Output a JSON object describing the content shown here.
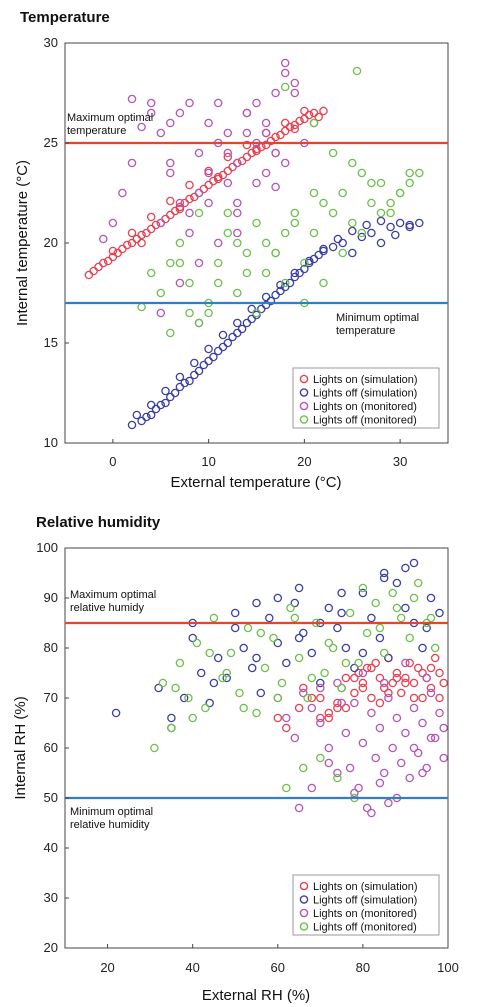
{
  "chart_data": [
    {
      "type": "scatter",
      "title": "Temperature",
      "xlabel": "External temperature (°C)",
      "ylabel": "Internal temperature (°C)",
      "xlim": [
        -5,
        35
      ],
      "ylim": [
        10,
        30
      ],
      "xticks": [
        "0",
        "10",
        "20",
        "30"
      ],
      "xtick_values": [
        0,
        10,
        20,
        30
      ],
      "yticks": [
        "10",
        "15",
        "20",
        "25",
        "30"
      ],
      "ytick_values": [
        10,
        15,
        20,
        25,
        30
      ],
      "reference_lines": [
        {
          "value": 25,
          "color": "#e0472d",
          "label": "Maximum optimal temperature",
          "label_lines": [
            "Maximum optimal",
            "temperature"
          ],
          "label_position": "above-left"
        },
        {
          "value": 17,
          "color": "#2e7fc3",
          "label": "Minimum optimal temperature",
          "label_lines": [
            "Minimum optimal",
            "temperature"
          ],
          "label_position": "below-right"
        }
      ],
      "legend": {
        "position": "bottom-right"
      },
      "series": [
        {
          "name": "Lights on (simulation)",
          "color": "#e8404f",
          "x": [
            -2.5,
            -2,
            -1.5,
            -1,
            -0.5,
            0,
            0.5,
            1,
            1.5,
            2,
            2.5,
            3,
            3.5,
            4,
            4.5,
            5,
            5.5,
            6,
            6.5,
            7,
            7.5,
            8,
            8.5,
            9,
            9.5,
            10,
            10.5,
            11,
            11.5,
            12,
            12.5,
            13,
            13.5,
            14,
            14.5,
            15,
            15.5,
            16,
            16.5,
            17,
            17.5,
            18,
            18.5,
            19,
            19.5,
            20,
            20.5,
            21,
            21.5,
            22,
            0,
            2,
            4,
            6,
            8,
            10,
            12,
            14,
            16,
            18,
            20,
            3,
            7,
            11,
            15,
            19
          ],
          "y": [
            18.4,
            18.6,
            18.8,
            19.0,
            19.1,
            19.3,
            19.5,
            19.7,
            19.9,
            20.0,
            20.2,
            20.4,
            20.5,
            20.7,
            20.9,
            21.0,
            21.2,
            21.4,
            21.6,
            21.8,
            22.0,
            22.2,
            22.3,
            22.5,
            22.7,
            22.9,
            23.1,
            23.3,
            23.4,
            23.6,
            23.8,
            24.0,
            24.1,
            24.3,
            24.5,
            24.6,
            24.8,
            24.9,
            25.1,
            25.3,
            25.4,
            25.6,
            25.8,
            25.9,
            26.1,
            26.2,
            26.4,
            26.5,
            26.3,
            26.6,
            19.6,
            20.5,
            21.3,
            22.1,
            22.9,
            23.6,
            24.3,
            24.9,
            25.5,
            26.0,
            26.6,
            20.0,
            21.7,
            23.2,
            24.7,
            25.7
          ]
        },
        {
          "name": "Lights off (simulation)",
          "color": "#3b3fa3",
          "x": [
            2,
            3,
            3.5,
            4,
            4.5,
            5,
            5.5,
            6,
            6.5,
            7,
            7.5,
            8,
            8.5,
            9,
            9.5,
            10,
            10.5,
            11,
            11.5,
            12,
            12.5,
            13,
            13.5,
            14,
            14.5,
            15,
            15.5,
            16,
            16.5,
            17,
            17.5,
            18,
            18.5,
            19,
            19.5,
            20,
            20.5,
            21,
            21.5,
            22,
            23,
            24,
            25,
            26,
            27,
            28,
            29,
            30,
            31,
            32,
            2.5,
            4,
            5.5,
            7,
            8.5,
            10,
            11.5,
            13,
            14.5,
            16,
            17.5,
            19,
            20.5,
            22,
            23.5,
            25,
            26.5,
            28,
            29.5,
            31
          ],
          "y": [
            10.9,
            11.1,
            11.3,
            11.4,
            11.7,
            11.9,
            12.0,
            12.3,
            12.5,
            12.8,
            13.0,
            13.1,
            13.4,
            13.6,
            13.9,
            14.1,
            14.3,
            14.6,
            14.8,
            15.0,
            15.3,
            15.5,
            15.7,
            16.0,
            16.2,
            16.4,
            16.7,
            16.9,
            17.1,
            17.4,
            17.6,
            17.8,
            18.0,
            18.3,
            18.5,
            18.7,
            19.0,
            19.2,
            19.4,
            19.6,
            19.8,
            20.0,
            19.5,
            20.3,
            20.5,
            20.0,
            20.8,
            21.0,
            20.8,
            21.0,
            11.4,
            11.9,
            12.6,
            13.3,
            14.0,
            14.7,
            15.4,
            16.0,
            16.7,
            17.3,
            17.9,
            18.5,
            19.1,
            19.7,
            20.2,
            20.6,
            20.9,
            21.1,
            20.4,
            20.9
          ]
        },
        {
          "name": "Lights on (monitored)",
          "color": "#b653b6",
          "x": [
            -1,
            0,
            1,
            2,
            3,
            4,
            5,
            6,
            7,
            8,
            9,
            10,
            11,
            12,
            13,
            14,
            15,
            16,
            17,
            18,
            19,
            20,
            21,
            5,
            6,
            7,
            8,
            9,
            10,
            11,
            12,
            13,
            14,
            15,
            16,
            17,
            18,
            4,
            6,
            8,
            10,
            12,
            14,
            16,
            18,
            7,
            9,
            11,
            13,
            15,
            17,
            19,
            2,
            5,
            9,
            13,
            17
          ],
          "y": [
            20.2,
            21.0,
            22.5,
            24.0,
            25.8,
            26.5,
            25.5,
            23.5,
            22.0,
            21.5,
            24.5,
            26.0,
            25.0,
            23.0,
            24.0,
            25.5,
            27.0,
            26.0,
            24.5,
            28.5,
            27.5,
            25.0,
            26.0,
            21.0,
            24.0,
            26.5,
            27.0,
            22.5,
            23.5,
            27.0,
            25.5,
            22.0,
            26.5,
            25.0,
            23.5,
            27.5,
            29.0,
            27.0,
            26.0,
            20.5,
            22.0,
            24.5,
            26.5,
            25.5,
            24.0,
            18.0,
            19.0,
            20.0,
            21.5,
            23.0,
            24.5,
            28.0,
            27.2,
            16.5,
            16.0,
            20.5,
            22.8
          ]
        },
        {
          "name": "Lights off (monitored)",
          "color": "#6cc04a",
          "x": [
            4,
            5,
            6,
            7,
            8,
            9,
            10,
            11,
            12,
            13,
            14,
            15,
            16,
            17,
            18,
            19,
            20,
            21,
            22,
            23,
            24,
            25,
            26,
            27,
            28,
            29,
            30,
            31,
            32,
            6,
            8,
            10,
            12,
            14,
            16,
            18,
            20,
            22,
            24,
            26,
            28,
            30,
            7,
            9,
            11,
            13,
            15,
            17,
            19,
            21,
            23,
            25,
            27,
            29,
            31,
            3,
            25.5,
            21,
            18
          ],
          "y": [
            18.5,
            17.5,
            19.0,
            20.0,
            18.0,
            21.5,
            16.5,
            19.0,
            20.5,
            17.5,
            18.5,
            21.0,
            20.0,
            19.5,
            18.0,
            21.5,
            19.0,
            20.5,
            18.0,
            21.5,
            22.5,
            21.0,
            20.5,
            22.0,
            23.0,
            21.5,
            22.5,
            23.0,
            23.5,
            15.5,
            16.5,
            17.0,
            21.5,
            19.5,
            18.5,
            20.5,
            17.0,
            22.0,
            19.5,
            23.5,
            21.5,
            22.5,
            19.0,
            16.0,
            18.0,
            20.0,
            16.5,
            19.5,
            21.0,
            22.5,
            24.5,
            24.0,
            23.0,
            22.0,
            23.5,
            16.8,
            28.6,
            26.0,
            27.8
          ]
        }
      ]
    },
    {
      "type": "scatter",
      "title": "Relative humidity",
      "xlabel": "External RH (%)",
      "ylabel": "Internal RH (%)",
      "xlim": [
        10,
        100
      ],
      "ylim": [
        20,
        100
      ],
      "xticks": [
        "20",
        "40",
        "60",
        "80",
        "100"
      ],
      "xtick_values": [
        20,
        40,
        60,
        80,
        100
      ],
      "yticks": [
        "20",
        "30",
        "40",
        "50",
        "60",
        "70",
        "80",
        "90",
        "100"
      ],
      "ytick_values": [
        20,
        30,
        40,
        50,
        60,
        70,
        80,
        90,
        100
      ],
      "reference_lines": [
        {
          "value": 85,
          "color": "#e0472d",
          "label": "Maximum optimal relative humidy",
          "label_lines": [
            "Maximum optimal",
            "relative humidy"
          ],
          "label_position": "above-left"
        },
        {
          "value": 50,
          "color": "#2e7fc3",
          "label": "Minimum optimal relative humidity",
          "label_lines": [
            "Minimum optimal",
            "relative humidity"
          ],
          "label_position": "below-left"
        }
      ],
      "legend": {
        "position": "bottom-right"
      },
      "series": [
        {
          "name": "Lights on (simulation)",
          "color": "#e8404f",
          "x": [
            60,
            62,
            65,
            68,
            70,
            72,
            74,
            75,
            76,
            78,
            79,
            80,
            81,
            82,
            83,
            84,
            85,
            86,
            87,
            88,
            89,
            90,
            91,
            92,
            93,
            94,
            95,
            96,
            97,
            98,
            99,
            66,
            70,
            74,
            78,
            82,
            86,
            90,
            94,
            98,
            72,
            76,
            80,
            84,
            88,
            92,
            96
          ],
          "y": [
            66,
            64,
            68,
            70,
            66,
            67,
            69,
            72,
            74,
            71,
            75,
            73,
            76,
            70,
            77,
            74,
            72,
            78,
            73,
            75,
            71,
            74,
            77,
            73,
            76,
            70,
            74,
            72,
            78,
            75,
            73,
            72,
            70,
            68,
            74,
            76,
            71,
            73,
            75,
            70,
            66,
            68,
            72,
            69,
            74,
            70,
            76
          ]
        },
        {
          "name": "Lights off (simulation)",
          "color": "#3b3fa3",
          "x": [
            22,
            32,
            35,
            38,
            40,
            42,
            44,
            46,
            48,
            50,
            52,
            54,
            56,
            58,
            60,
            62,
            64,
            66,
            68,
            70,
            72,
            74,
            76,
            78,
            80,
            82,
            84,
            86,
            88,
            90,
            92,
            94,
            96,
            98,
            45,
            50,
            55,
            60,
            65,
            70,
            75,
            80,
            85,
            90,
            95,
            35,
            40,
            55,
            65,
            75,
            85,
            92
          ],
          "y": [
            67,
            72,
            66,
            70,
            82,
            75,
            69,
            78,
            74,
            84,
            80,
            76,
            71,
            86,
            81,
            77,
            89,
            83,
            79,
            73,
            88,
            84,
            80,
            76,
            91,
            86,
            82,
            78,
            93,
            88,
            85,
            80,
            90,
            87,
            73,
            87,
            78,
            90,
            82,
            85,
            91,
            79,
            94,
            96,
            84,
            64,
            85,
            89,
            92,
            87,
            95,
            97
          ]
        },
        {
          "name": "Lights on (monitored)",
          "color": "#b653b6",
          "x": [
            60,
            62,
            64,
            66,
            68,
            70,
            72,
            74,
            76,
            77,
            78,
            79,
            80,
            81,
            82,
            83,
            84,
            85,
            86,
            87,
            88,
            89,
            90,
            91,
            92,
            93,
            94,
            95,
            96,
            97,
            98,
            99,
            70,
            75,
            80,
            85,
            90,
            95,
            72,
            78,
            84,
            88,
            92,
            96,
            99,
            65,
            68,
            74,
            82,
            86,
            94
          ],
          "y": [
            70,
            66,
            62,
            71,
            68,
            65,
            60,
            73,
            63,
            56,
            69,
            52,
            61,
            48,
            67,
            58,
            64,
            55,
            70,
            60,
            66,
            57,
            63,
            54,
            68,
            59,
            65,
            56,
            71,
            62,
            67,
            58,
            72,
            69,
            75,
            73,
            77,
            74,
            57,
            51,
            53,
            50,
            60,
            62,
            64,
            48,
            52,
            55,
            47,
            49,
            55
          ]
        },
        {
          "name": "Lights off (monitored)",
          "color": "#6cc04a",
          "x": [
            31,
            33,
            35,
            37,
            39,
            41,
            43,
            45,
            47,
            49,
            51,
            53,
            55,
            57,
            59,
            61,
            63,
            65,
            67,
            69,
            71,
            73,
            75,
            77,
            79,
            81,
            83,
            85,
            87,
            89,
            91,
            93,
            95,
            97,
            36,
            40,
            44,
            48,
            52,
            56,
            60,
            64,
            68,
            72,
            76,
            80,
            84,
            88,
            92,
            96,
            62,
            66,
            70,
            74,
            78
          ],
          "y": [
            60,
            73,
            64,
            77,
            70,
            81,
            68,
            86,
            74,
            79,
            71,
            84,
            67,
            76,
            82,
            73,
            88,
            78,
            70,
            85,
            75,
            80,
            72,
            87,
            77,
            83,
            89,
            79,
            91,
            86,
            82,
            93,
            85,
            80,
            72,
            66,
            79,
            75,
            68,
            83,
            70,
            86,
            74,
            81,
            77,
            92,
            84,
            88,
            90,
            86,
            52,
            56,
            58,
            54,
            50
          ]
        }
      ]
    }
  ]
}
